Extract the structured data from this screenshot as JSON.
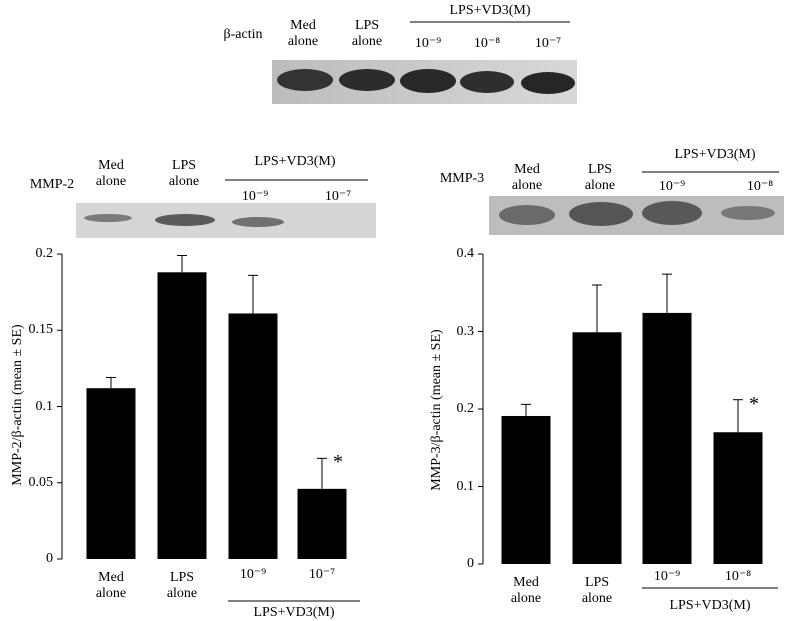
{
  "blots": {
    "top": {
      "label": "β-actin",
      "lanes": [
        "Med alone",
        "LPS alone",
        "10⁻⁹",
        "10⁻⁸",
        "10⁻⁷"
      ],
      "group": "LPS+VD3(M)"
    },
    "mmp2": {
      "label": "MMP-2",
      "lanes": [
        "Med alone",
        "LPS alone",
        "10⁻⁹",
        "10⁻⁷"
      ],
      "group": "LPS+VD3(M)"
    },
    "mmp3": {
      "label": "MMP-3",
      "lanes": [
        "Med alone",
        "LPS alone",
        "10⁻⁹",
        "10⁻⁸"
      ],
      "group": "LPS+VD3(M)"
    }
  },
  "chart_data": [
    {
      "type": "bar",
      "ylabel": "MMP-2/β-actin (mean ± SE)",
      "categories": [
        "Med alone",
        "LPS alone",
        "10⁻⁹",
        "10⁻⁷"
      ],
      "values": [
        0.112,
        0.188,
        0.161,
        0.046
      ],
      "errors": [
        0.007,
        0.011,
        0.025,
        0.02
      ],
      "color": "#000000",
      "ylim": [
        0,
        0.2
      ],
      "yticks": [
        0,
        0.05,
        0.1,
        0.15,
        0.2
      ],
      "group_label": "LPS+VD3(M)",
      "annotations": [
        {
          "text": "*",
          "x": "10⁻⁷"
        }
      ]
    },
    {
      "type": "bar",
      "ylabel": "MMP-3/β-actin (mean ± SE)",
      "categories": [
        "Med alone",
        "LPS alone",
        "10⁻⁹",
        "10⁻⁸"
      ],
      "values": [
        0.191,
        0.299,
        0.324,
        0.17
      ],
      "errors": [
        0.015,
        0.061,
        0.05,
        0.042
      ],
      "color": "#000000",
      "ylim": [
        0,
        0.4
      ],
      "yticks": [
        0,
        0.1,
        0.2,
        0.3,
        0.4
      ],
      "group_label": "LPS+VD3(M)",
      "annotations": [
        {
          "text": "*",
          "x": "10⁻⁸"
        }
      ]
    }
  ]
}
